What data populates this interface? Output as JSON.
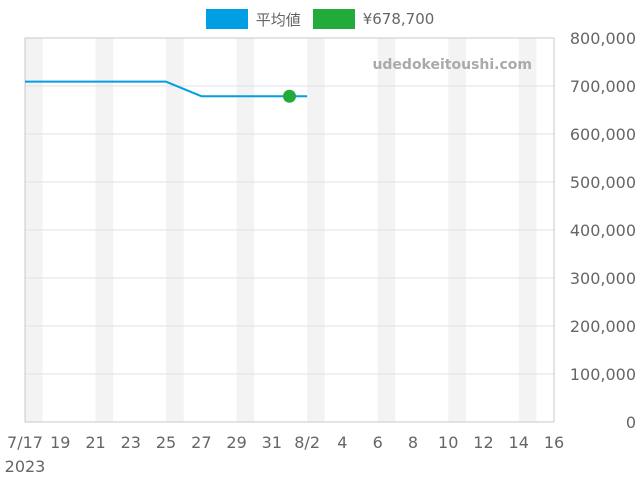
{
  "legend": [
    {
      "label": "平均値",
      "color": "#009ee3"
    },
    {
      "label": "¥678,700",
      "color": "#22aa3a"
    }
  ],
  "watermark": "udedokeitoushi.com",
  "chart_data": {
    "type": "line",
    "x_start_date": "2023-07-17",
    "x_end_date": "2023-08-16",
    "x_tick_labels": [
      {
        "date": "2023-07-17",
        "label": "7/17",
        "sublabel": "2023"
      },
      {
        "date": "2023-07-19",
        "label": "19"
      },
      {
        "date": "2023-07-21",
        "label": "21"
      },
      {
        "date": "2023-07-23",
        "label": "23"
      },
      {
        "date": "2023-07-25",
        "label": "25"
      },
      {
        "date": "2023-07-27",
        "label": "27"
      },
      {
        "date": "2023-07-29",
        "label": "29"
      },
      {
        "date": "2023-07-31",
        "label": "31"
      },
      {
        "date": "2023-08-02",
        "label": "8/2"
      },
      {
        "date": "2023-08-04",
        "label": "4"
      },
      {
        "date": "2023-08-06",
        "label": "6"
      },
      {
        "date": "2023-08-08",
        "label": "8"
      },
      {
        "date": "2023-08-10",
        "label": "10"
      },
      {
        "date": "2023-08-12",
        "label": "12"
      },
      {
        "date": "2023-08-14",
        "label": "14"
      },
      {
        "date": "2023-08-16",
        "label": "16"
      }
    ],
    "ylim": [
      0,
      800000
    ],
    "y_tick_values": [
      0,
      100000,
      200000,
      300000,
      400000,
      500000,
      600000,
      700000,
      800000
    ],
    "y_tick_labels": [
      "0",
      "100,000",
      "200,000",
      "300,000",
      "400,000",
      "500,000",
      "600,000",
      "700,000",
      "800,000"
    ],
    "y_axis_side": "right",
    "grid": true,
    "legend_position": "top-center",
    "series": [
      {
        "name": "平均値",
        "type": "line",
        "color": "#009ee3",
        "points": [
          {
            "x": "2023-07-17",
            "y": 709000
          },
          {
            "x": "2023-07-25",
            "y": 709000
          },
          {
            "x": "2023-07-27",
            "y": 678700
          },
          {
            "x": "2023-08-02",
            "y": 678700
          }
        ]
      },
      {
        "name": "¥678,700",
        "type": "scatter",
        "color": "#22aa3a",
        "points": [
          {
            "x": "2023-08-01",
            "y": 678700
          }
        ]
      }
    ]
  }
}
